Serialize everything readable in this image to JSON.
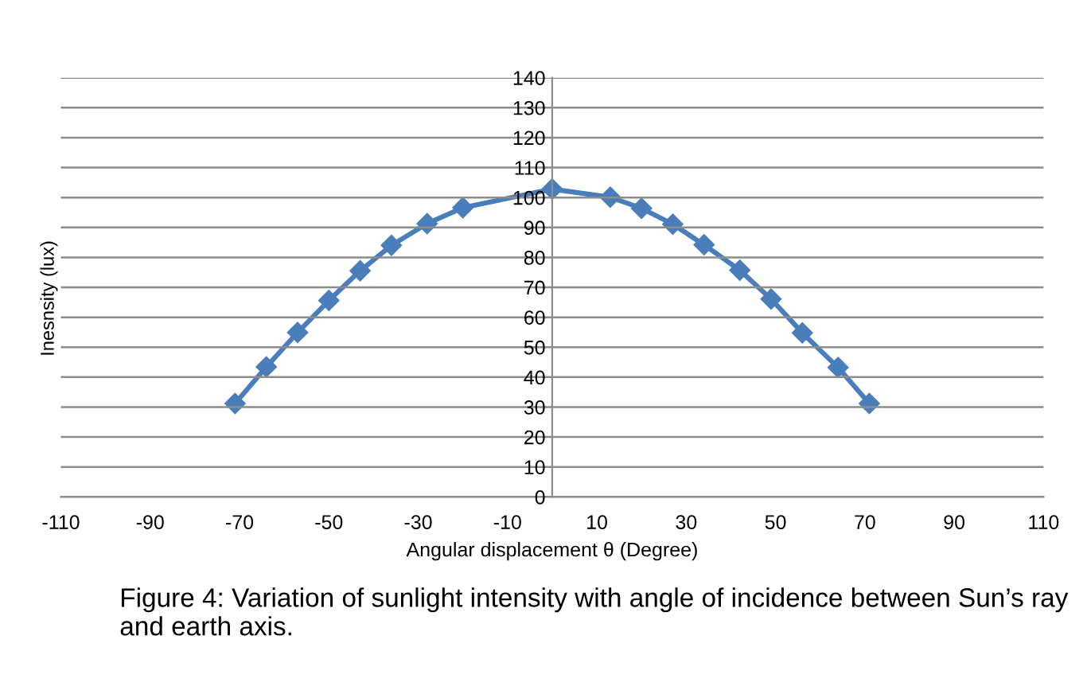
{
  "chart_data": {
    "type": "line",
    "xlabel": "Angular displacement θ (Degree)",
    "ylabel": "Inesnsity (lux)",
    "x": [
      -71,
      -64,
      -57,
      -50,
      -43,
      -36,
      -28,
      -20,
      0,
      13,
      20,
      27,
      34,
      42,
      49,
      56,
      64,
      71
    ],
    "series": [
      {
        "color": "#4a7ebb",
        "values": [
          31.2,
          43.4,
          54.9,
          65.6,
          75.5,
          84,
          91.3,
          96.6,
          102.8,
          100.1,
          96.4,
          91.1,
          84.2,
          75.7,
          66.1,
          54.8,
          43.2,
          31.2
        ]
      }
    ],
    "xlim": [
      -110,
      110
    ],
    "xticks": [
      -110,
      -90,
      -70,
      -50,
      -30,
      -10,
      10,
      30,
      50,
      70,
      90,
      110
    ],
    "ylim": [
      0,
      140
    ],
    "yticks": [
      0,
      10,
      20,
      30,
      40,
      50,
      60,
      70,
      80,
      90,
      100,
      110,
      120,
      130,
      140
    ],
    "grid": "y",
    "marker": "diamond",
    "line_style": "solid",
    "annotations": [
      "Figure 4: Variation of sunlight intensity with angle of incidence between Sun’s ray and earth axis."
    ]
  }
}
